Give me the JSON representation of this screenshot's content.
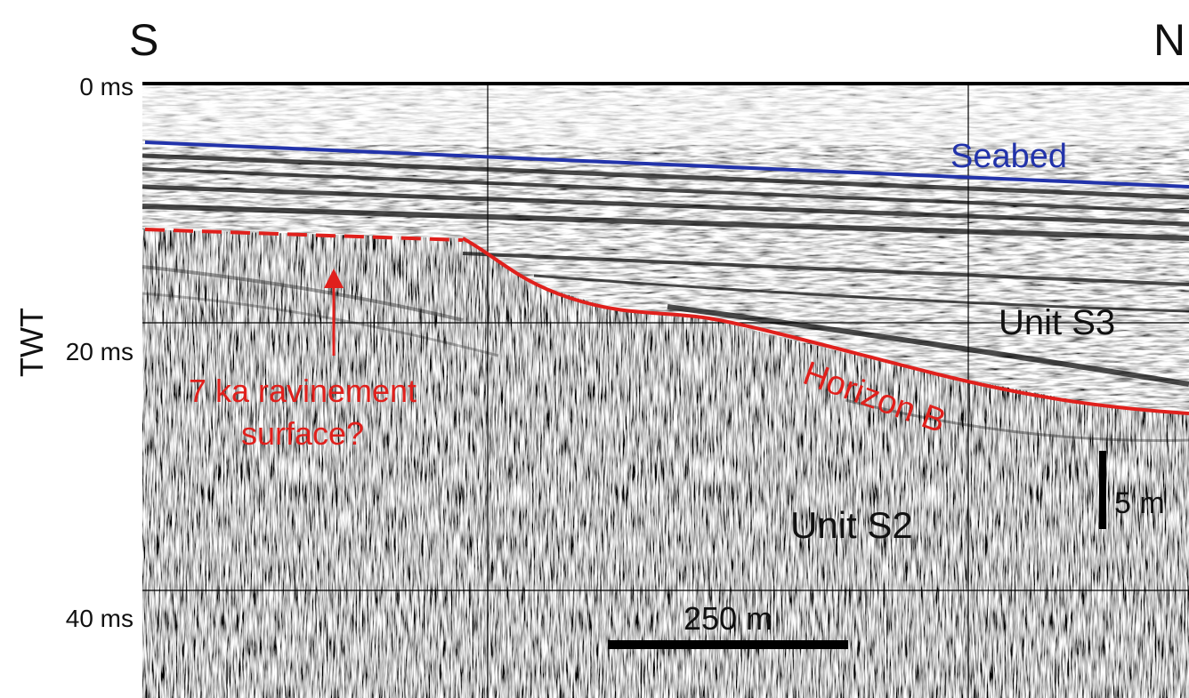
{
  "header": {
    "south": "S",
    "north": "N"
  },
  "axis": {
    "title": "TWT",
    "ticks": [
      "0 ms",
      "20 ms",
      "40 ms"
    ]
  },
  "annotations": {
    "seabed": "Seabed",
    "unit_s3": "Unit S3",
    "horizon_b": "Horizon B",
    "ravinement": [
      "7 ka ravinement",
      "surface?"
    ],
    "unit_s2": "Unit S2"
  },
  "scale_bars": {
    "vertical": "5 m",
    "horizontal": "250 m"
  }
}
